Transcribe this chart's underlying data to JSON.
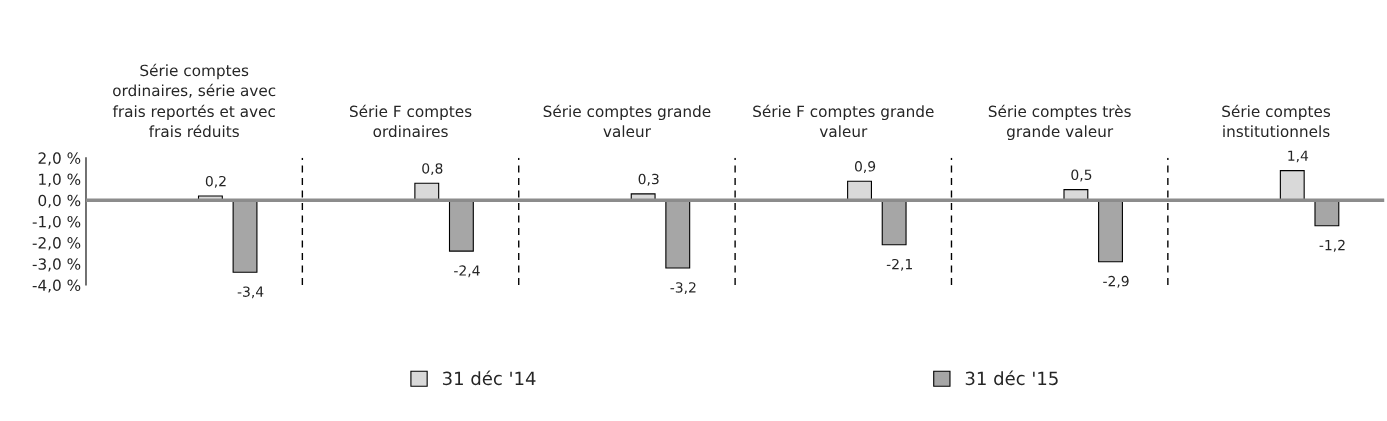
{
  "chart_data": {
    "type": "bar",
    "categories": [
      "Série comptes\nordinaires, série avec\nfrais reportés et avec\nfrais réduits",
      "Série F comptes\nordinaires",
      "Série comptes grande\nvaleur",
      "Série F comptes grande\nvaleur",
      "Série comptes très\ngrande valeur",
      "Série comptes\ninstitutionnels"
    ],
    "series": [
      {
        "name": "31 déc '14",
        "color": "#d9d9d9",
        "values": [
          0.2,
          0.8,
          0.3,
          0.9,
          0.5,
          1.4
        ],
        "value_labels": [
          "0,2",
          "0,8",
          "0,3",
          "0,9",
          "0,5",
          "1,4"
        ]
      },
      {
        "name": "31 déc '15",
        "color": "#a6a6a6",
        "values": [
          -3.4,
          -2.4,
          -3.2,
          -2.1,
          -2.9,
          -1.2
        ],
        "value_labels": [
          "-3,4",
          "-2,4",
          "-3,2",
          "-2,1",
          "-2,9",
          "-1,2"
        ]
      }
    ],
    "ylim": [
      -4,
      2
    ],
    "yticks": [
      {
        "value": 2,
        "label": "2,0 %"
      },
      {
        "value": 1,
        "label": "1,0 %"
      },
      {
        "value": 0,
        "label": "0,0 %"
      },
      {
        "value": -1,
        "label": "-1,0 %"
      },
      {
        "value": -2,
        "label": "-2,0 %"
      },
      {
        "value": -3,
        "label": "-3,0 %"
      },
      {
        "value": -4,
        "label": "-4,0 %"
      }
    ],
    "grid": "x",
    "legend": "bottom"
  }
}
